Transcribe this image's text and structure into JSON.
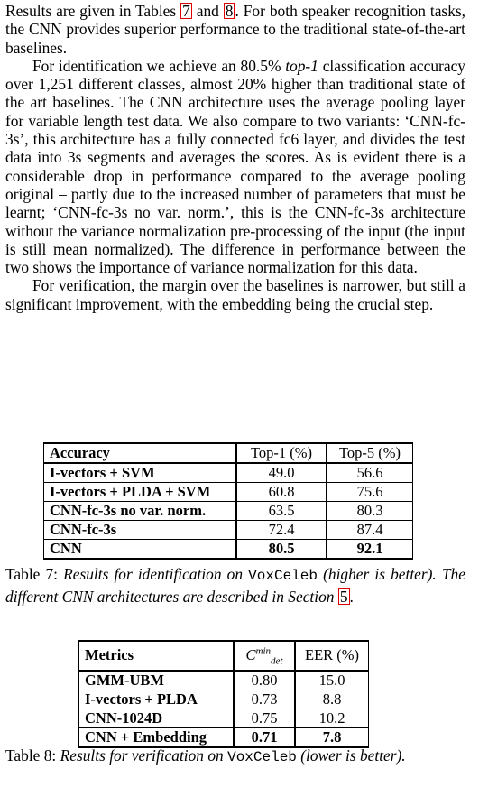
{
  "body": {
    "p1": {
      "a": "Results are given in Tables ",
      "ref1": "7",
      "b": " and ",
      "ref2": "8",
      "c": ".  For both speaker recognition tasks, the CNN provides superior performance to the traditional state-of-the-art baselines."
    },
    "p2": {
      "a": "For identification we achieve an 80.5% ",
      "em": "top-1",
      "b": " classification accuracy over 1,251 different classes, almost 20% higher than traditional state of the art baselines. The CNN architecture uses the average pooling layer for variable length test data. We also compare to two variants: ‘CNN-fc-3s’, this architecture has a fully connected fc6 layer, and divides the test data into 3s segments and averages the scores.  As is evident there is a considerable drop in performance compared to the average pooling original – partly due to the increased number of parameters that must be learnt; ‘CNN-fc-3s no var. norm.’, this is the CNN-fc-3s architecture without the variance normalization pre-processing of the input (the input is still mean normalized).  The difference in performance between the two shows the importance of variance normalization for this data."
    },
    "p3": "For verification, the margin over the baselines is narrower, but still a significant improvement, with the embedding being the crucial step."
  },
  "table7": {
    "headers": [
      "Accuracy",
      "Top-1 (%)",
      "Top-5 (%)"
    ],
    "rows": [
      [
        "I-vectors + SVM",
        "49.0",
        "56.6"
      ],
      [
        "I-vectors + PLDA + SVM",
        "60.8",
        "75.6"
      ],
      [
        "CNN-fc-3s no var. norm.",
        "63.5",
        "80.3"
      ],
      [
        "CNN-fc-3s",
        "72.4",
        "87.4"
      ],
      [
        "CNN",
        "80.5",
        "92.1"
      ]
    ],
    "caption": {
      "label": "Table 7: ",
      "a": "Results for identification on ",
      "mono": "VoxCeleb",
      "b": " (higher is better). The different CNN architectures are described in Section ",
      "ref": "5",
      "c": "."
    }
  },
  "table8": {
    "headers": [
      "Metrics",
      "C",
      "min",
      "det",
      "EER (%)"
    ],
    "rows": [
      [
        "GMM-UBM",
        "0.80",
        "15.0"
      ],
      [
        "I-vectors + PLDA",
        "0.73",
        "8.8"
      ],
      [
        "CNN-1024D",
        "0.75",
        "10.2"
      ],
      [
        "CNN + Embedding",
        "0.71",
        "7.8"
      ]
    ],
    "caption": {
      "label": "Table 8: ",
      "a": "Results for verification on ",
      "mono": "VoxCeleb",
      "b": " (lower is better)."
    }
  }
}
